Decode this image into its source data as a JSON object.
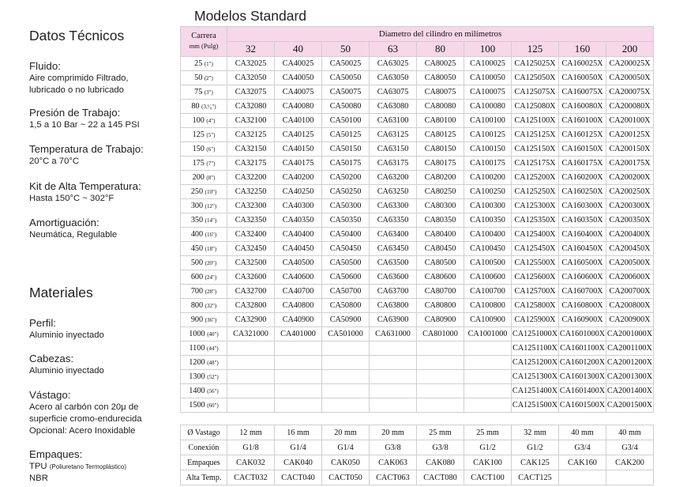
{
  "left": {
    "datos_title": "Datos Técnicos",
    "specs": [
      {
        "label": "Fluido:",
        "lines": [
          "Aire comprimido Filtrado,",
          "lubricado o no lubricado"
        ]
      },
      {
        "label": "Presión de Trabajo:",
        "lines": [
          "1,5 a 10 Bar ~ 22 a 145 PSI"
        ]
      },
      {
        "label": "Temperatura de Trabajo:",
        "lines": [
          "20°C a 70°C"
        ]
      },
      {
        "label": "Kit de Alta Temperatura:",
        "lines": [
          "Hasta 150°C ~ 302°F"
        ]
      },
      {
        "label": "Amortiguación:",
        "lines": [
          "Neumática, Regulable"
        ]
      }
    ],
    "materiales_title": "Materiales",
    "materials": [
      {
        "label": "Perfil:",
        "lines": [
          "Aluminio inyectado"
        ]
      },
      {
        "label": "Cabezas:",
        "lines": [
          "Aluminio inyectado"
        ]
      },
      {
        "label": "Vástago:",
        "lines": [
          "Acero al carbón con 20μ de",
          "superficie cromo-endurecida",
          "Opcional: Acero Inoxidable"
        ]
      },
      {
        "label": "Empaques:",
        "lines": [
          "TPU",
          "NBR"
        ],
        "tpu_note": "(Poliuretano Termoplástico)"
      }
    ]
  },
  "models_title": "Modelos Standard",
  "table": {
    "corner_line1": "Carrera",
    "corner_line2": "mm (Pulg)",
    "diam_title": "Diametro del cilindro en milimetros",
    "diameters": [
      "32",
      "40",
      "50",
      "63",
      "80",
      "100",
      "125",
      "160",
      "200"
    ],
    "rows": [
      {
        "mm": "25",
        "inch": "(1\")",
        "cells": [
          "CA32025",
          "CA40025",
          "CA50025",
          "CA63025",
          "CA80025",
          "CA100025",
          "CA125025X",
          "CA160025X",
          "CA200025X"
        ]
      },
      {
        "mm": "50",
        "inch": "(2\")",
        "cells": [
          "CA32050",
          "CA40050",
          "CA50050",
          "CA63050",
          "CA80050",
          "CA100050",
          "CA125050X",
          "CA160050X",
          "CA200050X"
        ]
      },
      {
        "mm": "75",
        "inch": "(3\")",
        "cells": [
          "CA32075",
          "CA40075",
          "CA50075",
          "CA63075",
          "CA80075",
          "CA100075",
          "CA125075X",
          "CA160075X",
          "CA200075X"
        ]
      },
      {
        "mm": "80",
        "inch": "(3,¹⁄₈\")",
        "cells": [
          "CA32080",
          "CA40080",
          "CA50080",
          "CA63080",
          "CA80080",
          "CA100080",
          "CA125080X",
          "CA160080X",
          "CA200080X"
        ]
      },
      {
        "mm": "100",
        "inch": "(4\")",
        "cells": [
          "CA32100",
          "CA40100",
          "CA50100",
          "CA63100",
          "CA80100",
          "CA100100",
          "CA125100X",
          "CA160100X",
          "CA200100X"
        ]
      },
      {
        "mm": "125",
        "inch": "(5\")",
        "cells": [
          "CA32125",
          "CA40125",
          "CA50125",
          "CA63125",
          "CA80125",
          "CA100125",
          "CA125125X",
          "CA160125X",
          "CA200125X"
        ]
      },
      {
        "mm": "150",
        "inch": "(6\")",
        "cells": [
          "CA32150",
          "CA40150",
          "CA50150",
          "CA63150",
          "CA80150",
          "CA100150",
          "CA125150X",
          "CA160150X",
          "CA200150X"
        ]
      },
      {
        "mm": "175",
        "inch": "(7\")",
        "cells": [
          "CA32175",
          "CA40175",
          "CA50175",
          "CA63175",
          "CA80175",
          "CA100175",
          "CA125175X",
          "CA160175X",
          "CA200175X"
        ]
      },
      {
        "mm": "200",
        "inch": "(8\")",
        "cells": [
          "CA32200",
          "CA40200",
          "CA50200",
          "CA63200",
          "CA80200",
          "CA100200",
          "CA125200X",
          "CA160200X",
          "CA200200X"
        ]
      },
      {
        "mm": "250",
        "inch": "(10\")",
        "cells": [
          "CA32250",
          "CA40250",
          "CA50250",
          "CA63250",
          "CA80250",
          "CA100250",
          "CA125250X",
          "CA160250X",
          "CA200250X"
        ]
      },
      {
        "mm": "300",
        "inch": "(12\")",
        "cells": [
          "CA32300",
          "CA40300",
          "CA50300",
          "CA63300",
          "CA80300",
          "CA100300",
          "CA125300X",
          "CA160300X",
          "CA200300X"
        ]
      },
      {
        "mm": "350",
        "inch": "(14\")",
        "cells": [
          "CA32350",
          "CA40350",
          "CA50350",
          "CA63350",
          "CA80350",
          "CA100350",
          "CA125350X",
          "CA160350X",
          "CA200350X"
        ]
      },
      {
        "mm": "400",
        "inch": "(16\")",
        "cells": [
          "CA32400",
          "CA40400",
          "CA50400",
          "CA63400",
          "CA80400",
          "CA100400",
          "CA125400X",
          "CA160400X",
          "CA200400X"
        ]
      },
      {
        "mm": "450",
        "inch": "(18\")",
        "cells": [
          "CA32450",
          "CA40450",
          "CA50450",
          "CA63450",
          "CA80450",
          "CA100450",
          "CA125450X",
          "CA160450X",
          "CA200450X"
        ]
      },
      {
        "mm": "500",
        "inch": "(20\")",
        "cells": [
          "CA32500",
          "CA40500",
          "CA50500",
          "CA63500",
          "CA80500",
          "CA100500",
          "CA125500X",
          "CA160500X",
          "CA200500X"
        ]
      },
      {
        "mm": "600",
        "inch": "(24\")",
        "cells": [
          "CA32600",
          "CA40600",
          "CA50600",
          "CA63600",
          "CA80600",
          "CA100600",
          "CA125600X",
          "CA160600X",
          "CA200600X"
        ]
      },
      {
        "mm": "700",
        "inch": "(28\")",
        "cells": [
          "CA32700",
          "CA40700",
          "CA50700",
          "CA63700",
          "CA80700",
          "CA100700",
          "CA125700X",
          "CA160700X",
          "CA200700X"
        ]
      },
      {
        "mm": "800",
        "inch": "(32\")",
        "cells": [
          "CA32800",
          "CA40800",
          "CA50800",
          "CA63800",
          "CA80800",
          "CA100800",
          "CA125800X",
          "CA160800X",
          "CA200800X"
        ]
      },
      {
        "mm": "900",
        "inch": "(36\")",
        "cells": [
          "CA32900",
          "CA40900",
          "CA50900",
          "CA63900",
          "CA80900",
          "CA100900",
          "CA125900X",
          "CA160900X",
          "CA200900X"
        ]
      },
      {
        "mm": "1000",
        "inch": "(40\")",
        "cells": [
          "CA321000",
          "CA401000",
          "CA501000",
          "CA631000",
          "CA801000",
          "CA1001000",
          "CA1251000X",
          "CA1601000X",
          "CA2001000X"
        ]
      },
      {
        "mm": "1100",
        "inch": "(44\")",
        "cells": [
          "",
          "",
          "",
          "",
          "",
          "",
          "CA1251100X",
          "CA1601100X",
          "CA2001100X"
        ]
      },
      {
        "mm": "1200",
        "inch": "(48\")",
        "cells": [
          "",
          "",
          "",
          "",
          "",
          "",
          "CA1251200X",
          "CA1601200X",
          "CA2001200X"
        ]
      },
      {
        "mm": "1300",
        "inch": "(52\")",
        "cells": [
          "",
          "",
          "",
          "",
          "",
          "",
          "CA1251300X",
          "CA1601300X",
          "CA2001300X"
        ]
      },
      {
        "mm": "1400",
        "inch": "(56\")",
        "cells": [
          "",
          "",
          "",
          "",
          "",
          "",
          "CA1251400X",
          "CA1601400X",
          "CA2001400X"
        ]
      },
      {
        "mm": "1500",
        "inch": "(60\")",
        "cells": [
          "",
          "",
          "",
          "",
          "",
          "",
          "CA1251500X",
          "CA1601500X",
          "CA2001500X"
        ]
      }
    ]
  },
  "bottom_table": [
    {
      "label": "Ø Vastago",
      "cells": [
        "12 mm",
        "16 mm",
        "20 mm",
        "20 mm",
        "25 mm",
        "25 mm",
        "32 mm",
        "40 mm",
        "40 mm"
      ]
    },
    {
      "label": "Conexión",
      "cells": [
        "G1/8",
        "G1/4",
        "G1/4",
        "G3/8",
        "G3/8",
        "G1/2",
        "G1/2",
        "G3/4",
        "G3/4"
      ]
    },
    {
      "label": "Empaques",
      "cells": [
        "CAK032",
        "CAK040",
        "CAK050",
        "CAK063",
        "CAK080",
        "CAK100",
        "CAK125",
        "CAK160",
        "CAK200"
      ]
    },
    {
      "label": "Alta Temp.",
      "cells": [
        "CACT032",
        "CACT040",
        "CACT050",
        "CACT063",
        "CACT080",
        "CACT100",
        "CACT125",
        "",
        ""
      ]
    }
  ],
  "colors": {
    "header_pink": "#f6d8e8",
    "grid_line": "#cfcfcf"
  }
}
